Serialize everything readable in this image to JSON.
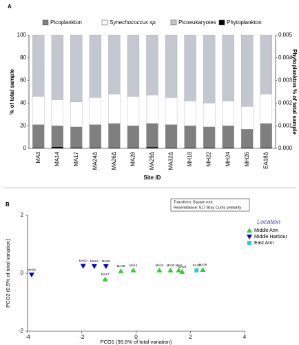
{
  "chart_data": [
    {
      "type": "bar",
      "panel_label": "A",
      "categories": [
        "MA3",
        "MA14",
        "MA17",
        "MA24Δ",
        "MA26Δ",
        "MA28",
        "MA29Δ",
        "MA32Δ",
        "MH18",
        "MH22",
        "MH24",
        "MH26",
        "EA18Δ"
      ],
      "series": [
        {
          "name": "Picoplankton",
          "color": "#7f7f7f",
          "values": [
            21,
            20,
            19,
            21,
            22,
            20,
            22,
            21,
            20,
            19,
            20,
            17,
            22
          ]
        },
        {
          "name": "Synechococcus sp.",
          "color": "#ffffff",
          "values": [
            25,
            23,
            22,
            24,
            26,
            26,
            25,
            24,
            22,
            21,
            22,
            20,
            26
          ]
        },
        {
          "name": "Picoeukaryotes",
          "color": "#c3c7cf",
          "values": [
            54,
            57,
            59,
            55,
            52,
            54,
            53,
            55,
            58,
            60,
            58,
            63,
            52
          ]
        },
        {
          "name": "Phytoplankton",
          "color": "#000000",
          "axis": "y2",
          "values": [
            2e-05,
            6e-05,
            3e-05,
            2e-05,
            2e-05,
            2e-05,
            5e-05,
            2e-05,
            2e-05,
            2e-05,
            2e-05,
            2e-05,
            2e-05
          ]
        }
      ],
      "ylabel": "% of total sample",
      "y2label": "Phytoplankton % of total sample",
      "xlabel": "Site ID",
      "ylim": [
        0,
        100
      ],
      "yticks": [
        0,
        20,
        40,
        60,
        80,
        100
      ],
      "y2lim": [
        0,
        0.005
      ],
      "y2ticks": [
        {
          "value": 0,
          "label": "0.000"
        },
        {
          "value": 0.001,
          "label": "0.001"
        },
        {
          "value": 0.002,
          "label": "0.002"
        },
        {
          "value": 0.003,
          "label": "0.003"
        },
        {
          "value": 0.004,
          "label": "0.004"
        },
        {
          "value": 0.005,
          "label": "0.005"
        }
      ]
    },
    {
      "type": "scatter",
      "panel_label": "B",
      "annotations": [
        "Transform: Square root",
        "Resemblance: S17 Bray Curtis similarity"
      ],
      "legend_title": "Location",
      "xlabel": "PCO1 (99.6% of total variation)",
      "ylabel": "PCO2 (0.5% of total variation)",
      "xlim": [
        -4,
        4
      ],
      "xticks": [
        -4,
        -2,
        0,
        2,
        4
      ],
      "ylim": [
        -2,
        2
      ],
      "yticks": [
        -2,
        0,
        2
      ],
      "series": [
        {
          "name": "Middle Arm",
          "color": "#33cc33",
          "marker": "triangle-up",
          "labels": [
            "MA17",
            "MA28",
            "MA14",
            "MA24",
            "MA32",
            "MA3",
            "MA29",
            "MA26"
          ],
          "x": [
            -1.14,
            -0.56,
            -0.1,
            0.86,
            1.27,
            1.57,
            1.7,
            2.46
          ],
          "y": [
            -0.21,
            0.07,
            0.1,
            0.1,
            0.1,
            0.1,
            0.05,
            0.12
          ]
        },
        {
          "name": "Middle Harbour",
          "color": "#0000cc",
          "marker": "triangle-down",
          "labels": [
            "MH26",
            "MH22",
            "MH24",
            "MH18"
          ],
          "x": [
            -3.85,
            -1.95,
            -1.54,
            -1.11
          ],
          "y": [
            -0.05,
            0.25,
            0.24,
            0.24
          ]
        },
        {
          "name": "East Arm",
          "color": "#33cccc",
          "marker": "square",
          "labels": [
            "EA18"
          ],
          "x": [
            2.23
          ],
          "y": [
            0.1
          ]
        }
      ]
    }
  ]
}
